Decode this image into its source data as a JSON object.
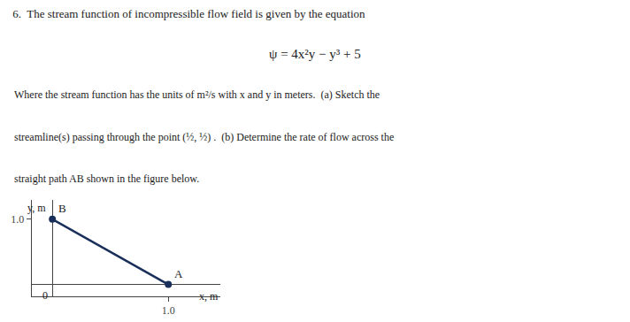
{
  "chart_data": {
    "type": "line",
    "title": "6.  The stream function of incompressible flow field is given by the equation",
    "annotations": [
      {
        "text": "ψ = 4x²y − y³ + 5"
      },
      {
        "text": "Where the stream function has the units of m²/s with x and y in meters.  (a) Sketch the"
      },
      {
        "text": "streamline(s) passing through the point (½, ½) .  (b) Determine the rate of flow across the"
      },
      {
        "text": "straight path AB shown in the figure below."
      },
      {
        "text": "A",
        "x": 1.0,
        "y": 0.0
      },
      {
        "text": "B",
        "x": 0.0,
        "y": 1.0
      },
      {
        "text": "0",
        "x": 0,
        "y": 0
      }
    ],
    "xlabel": "x, m",
    "ylabel": "y, m",
    "x": [
      0.0,
      1.0
    ],
    "series": [
      {
        "values": [
          1.0,
          0.0
        ],
        "color": "#1a2e5a",
        "marker": "circle"
      }
    ],
    "xlim": [
      -0.18,
      1.45
    ],
    "ylim": [
      -0.18,
      1.3
    ],
    "xticks": [
      {
        "value": 1.0,
        "label": "1.0"
      }
    ],
    "yticks": [
      {
        "value": 1.0,
        "label": "1.0"
      }
    ],
    "grid": false
  }
}
